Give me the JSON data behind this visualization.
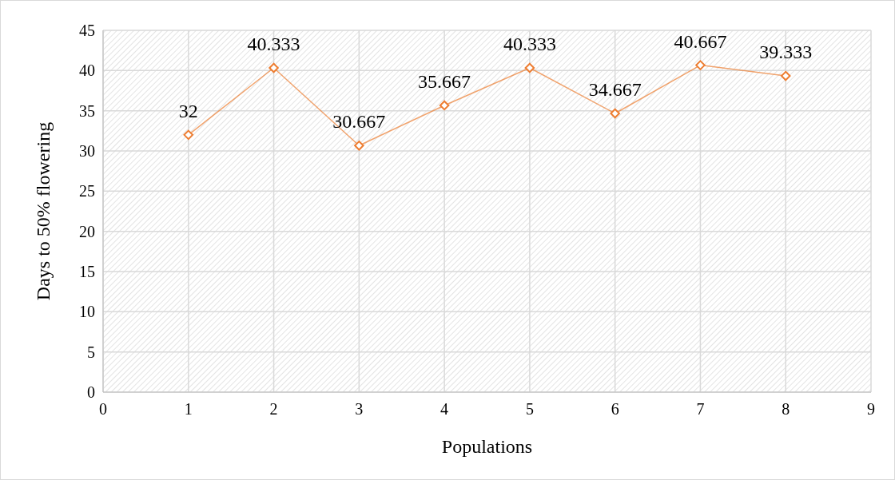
{
  "chart_data": {
    "type": "line",
    "xlabel": "Populations",
    "ylabel": "Days to 50% flowering",
    "x": [
      1,
      2,
      3,
      4,
      5,
      6,
      7,
      8
    ],
    "series": [
      {
        "color": "#ed7d31",
        "values": [
          32,
          40.333,
          30.667,
          35.667,
          40.333,
          34.667,
          40.667,
          39.333
        ]
      }
    ],
    "xlim": [
      0,
      9
    ],
    "xticks": [
      0,
      1,
      2,
      3,
      4,
      5,
      6,
      7,
      8,
      9
    ],
    "ylim": [
      0,
      45
    ],
    "yticks": [
      0,
      5,
      10,
      15,
      20,
      25,
      30,
      35,
      40,
      45
    ],
    "grid": true,
    "marker": "diamond",
    "line_style": "solid",
    "data_labels": true
  }
}
